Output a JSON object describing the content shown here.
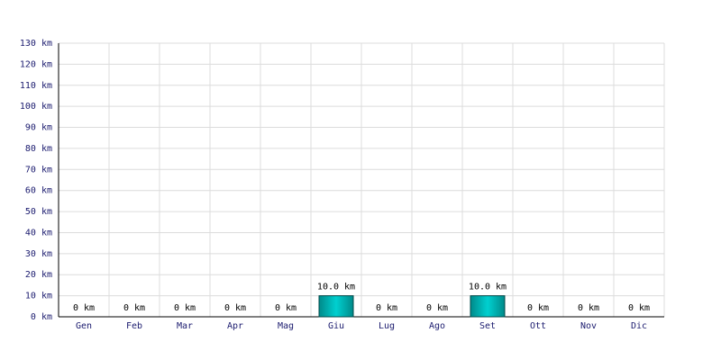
{
  "chart_data": {
    "type": "bar",
    "categories": [
      "Gen",
      "Feb",
      "Mar",
      "Apr",
      "Mag",
      "Giu",
      "Lug",
      "Ago",
      "Set",
      "Ott",
      "Nov",
      "Dic"
    ],
    "values": [
      0,
      0,
      0,
      0,
      0,
      10,
      0,
      0,
      10,
      0,
      0,
      0
    ],
    "value_labels": [
      "0 km",
      "0 km",
      "0 km",
      "0 km",
      "0 km",
      "10.0 km",
      "0 km",
      "0 km",
      "10.0 km",
      "0 km",
      "0 km",
      "0 km"
    ],
    "color": "#00d0d0",
    "ylim": [
      0,
      130
    ],
    "yticks": [
      {
        "value": 0,
        "label": "0 km"
      },
      {
        "value": 10,
        "label": "10 km"
      },
      {
        "value": 20,
        "label": "20 km"
      },
      {
        "value": 30,
        "label": "30 km"
      },
      {
        "value": 40,
        "label": "40 km"
      },
      {
        "value": 50,
        "label": "50 km"
      },
      {
        "value": 60,
        "label": "60 km"
      },
      {
        "value": 70,
        "label": "70 km"
      },
      {
        "value": 80,
        "label": "80 km"
      },
      {
        "value": 90,
        "label": "90 km"
      },
      {
        "value": 100,
        "label": "100 km"
      },
      {
        "value": 110,
        "label": "110 km"
      },
      {
        "value": 120,
        "label": "120 km"
      },
      {
        "value": 130,
        "label": "130 km"
      }
    ],
    "grid": true
  }
}
